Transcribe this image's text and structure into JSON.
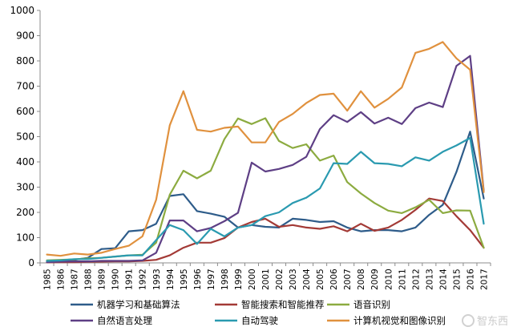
{
  "chart_data": {
    "type": "line",
    "title": "",
    "xlabel": "",
    "ylabel": "",
    "x": [
      "1985",
      "1986",
      "1987",
      "1988",
      "1989",
      "1990",
      "1991",
      "1992",
      "1993",
      "1994",
      "1995",
      "1996",
      "1997",
      "1998",
      "1999",
      "2000",
      "2001",
      "2002",
      "2003",
      "2004",
      "2005",
      "2006",
      "2007",
      "2008",
      "2009",
      "2010",
      "2011",
      "2012",
      "2013",
      "2014",
      "2015",
      "2016",
      "2017"
    ],
    "ylim": [
      0,
      1000
    ],
    "yticks": [
      0,
      100,
      200,
      300,
      400,
      500,
      600,
      700,
      800,
      900,
      1000
    ],
    "grid": false,
    "legend": "bottom",
    "series": [
      {
        "name": "机器学习和基础算法",
        "color": "#2e5c8a",
        "values": [
          5,
          8,
          12,
          20,
          55,
          58,
          125,
          130,
          155,
          265,
          272,
          205,
          195,
          183,
          140,
          150,
          143,
          140,
          175,
          170,
          162,
          165,
          140,
          125,
          130,
          130,
          125,
          140,
          190,
          230,
          360,
          520,
          255
        ]
      },
      {
        "name": "智能搜索和智能推荐",
        "color": "#a33a36",
        "values": [
          2,
          3,
          3,
          4,
          5,
          6,
          6,
          8,
          12,
          30,
          60,
          80,
          80,
          98,
          140,
          162,
          175,
          143,
          150,
          140,
          135,
          145,
          125,
          155,
          127,
          140,
          170,
          210,
          255,
          245,
          185,
          130,
          60
        ]
      },
      {
        "name": "语音识别",
        "color": "#8cab40",
        "values": [
          10,
          12,
          14,
          18,
          20,
          25,
          30,
          32,
          80,
          270,
          365,
          335,
          365,
          490,
          572,
          550,
          573,
          483,
          455,
          470,
          405,
          425,
          320,
          275,
          237,
          207,
          197,
          220,
          250,
          197,
          208,
          207,
          60
        ]
      },
      {
        "name": "自然语言处理",
        "color": "#5e3f85",
        "values": [
          3,
          5,
          6,
          6,
          8,
          8,
          8,
          10,
          40,
          168,
          168,
          125,
          138,
          165,
          198,
          397,
          362,
          372,
          388,
          420,
          530,
          585,
          558,
          597,
          552,
          575,
          550,
          613,
          635,
          617,
          780,
          820,
          285
        ]
      },
      {
        "name": "自动驾驶",
        "color": "#2a9ab0",
        "values": [
          8,
          10,
          15,
          15,
          20,
          25,
          30,
          30,
          90,
          150,
          130,
          75,
          135,
          105,
          140,
          150,
          185,
          200,
          237,
          258,
          295,
          395,
          392,
          440,
          395,
          392,
          383,
          418,
          405,
          440,
          465,
          495,
          155
        ]
      },
      {
        "name": "计算机视觉和图像识别",
        "color": "#e0913e",
        "values": [
          33,
          28,
          37,
          33,
          40,
          55,
          68,
          105,
          250,
          545,
          680,
          527,
          520,
          535,
          540,
          477,
          477,
          558,
          590,
          633,
          665,
          670,
          603,
          680,
          615,
          650,
          695,
          832,
          848,
          875,
          810,
          765,
          280
        ]
      }
    ]
  },
  "watermark": {
    "text": "智东西"
  }
}
